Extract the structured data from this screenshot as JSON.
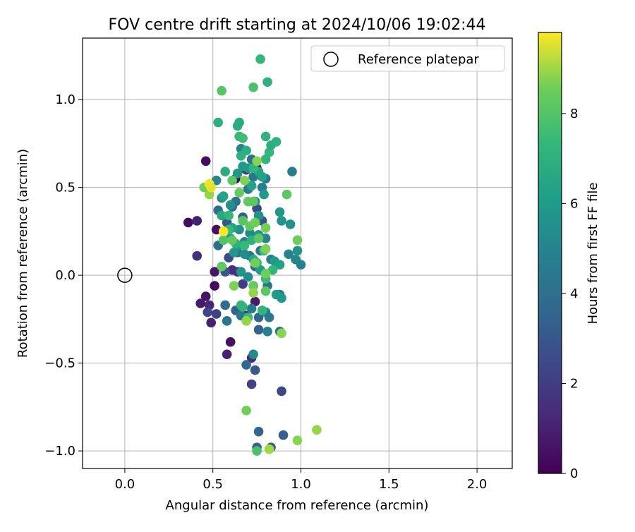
{
  "chart_data": {
    "type": "scatter",
    "title": "FOV centre drift starting at 2024/10/06 19:02:44",
    "xlabel": "Angular distance from reference (arcmin)",
    "ylabel": "Rotation from reference (arcmin)",
    "xlim": [
      -0.24,
      2.2
    ],
    "ylim": [
      -1.1,
      1.35
    ],
    "xticks": [
      0.0,
      0.5,
      1.0,
      1.5,
      2.0
    ],
    "xtick_labels": [
      "0.0",
      "0.5",
      "1.0",
      "1.5",
      "2.0"
    ],
    "yticks": [
      -1.0,
      -0.5,
      0.0,
      0.5,
      1.0
    ],
    "ytick_labels": [
      "−1.0",
      "−0.5",
      "0.0",
      "0.5",
      "1.0"
    ],
    "grid": true,
    "legend": {
      "position": "top-right",
      "entries": [
        "Reference platepar"
      ]
    },
    "reference_point": {
      "name": "Reference platepar",
      "x": 0.0,
      "y": 0.0
    },
    "colorbar": {
      "label": "Hours from first FF file",
      "range": [
        0,
        9.8
      ],
      "ticks": [
        0,
        2,
        4,
        6,
        8
      ],
      "tick_labels": [
        "0",
        "2",
        "4",
        "6",
        "8"
      ],
      "colormap": "viridis"
    },
    "series": [
      {
        "color_by": "hours",
        "points": [
          {
            "x": 0.36,
            "y": 0.3,
            "c": 0.3
          },
          {
            "x": 0.41,
            "y": 0.31,
            "c": 1.0
          },
          {
            "x": 0.46,
            "y": 0.65,
            "c": 0.3
          },
          {
            "x": 0.52,
            "y": 0.26,
            "c": 0.4
          },
          {
            "x": 0.41,
            "y": 0.11,
            "c": 1.5
          },
          {
            "x": 0.51,
            "y": 0.02,
            "c": 0.7
          },
          {
            "x": 0.51,
            "y": -0.06,
            "c": 0.3
          },
          {
            "x": 0.46,
            "y": -0.12,
            "c": 0.6
          },
          {
            "x": 0.43,
            "y": -0.16,
            "c": 0.8
          },
          {
            "x": 0.48,
            "y": -0.17,
            "c": 1.2
          },
          {
            "x": 0.47,
            "y": -0.21,
            "c": 2.4
          },
          {
            "x": 0.49,
            "y": -0.27,
            "c": 1.0
          },
          {
            "x": 0.52,
            "y": -0.22,
            "c": 2.1
          },
          {
            "x": 0.6,
            "y": -0.38,
            "c": 0.5
          },
          {
            "x": 0.58,
            "y": -0.45,
            "c": 1.0
          },
          {
            "x": 0.72,
            "y": -0.47,
            "c": 1.4
          },
          {
            "x": 0.72,
            "y": -0.62,
            "c": 2.2
          },
          {
            "x": 0.89,
            "y": -0.66,
            "c": 2.4
          },
          {
            "x": 0.63,
            "y": 0.55,
            "c": 0.4
          },
          {
            "x": 0.69,
            "y": 0.6,
            "c": 1.7
          },
          {
            "x": 0.75,
            "y": 0.61,
            "c": 0.9
          },
          {
            "x": 0.61,
            "y": 0.03,
            "c": 1.4
          },
          {
            "x": 0.64,
            "y": 0.02,
            "c": 1.6
          },
          {
            "x": 0.67,
            "y": -0.05,
            "c": 2.0
          },
          {
            "x": 0.59,
            "y": 0.1,
            "c": 2.6
          },
          {
            "x": 0.57,
            "y": 0.02,
            "c": 3.0
          },
          {
            "x": 0.74,
            "y": -0.15,
            "c": 0.8
          },
          {
            "x": 0.69,
            "y": -0.23,
            "c": 1.3
          },
          {
            "x": 0.75,
            "y": 0.38,
            "c": 2.3
          },
          {
            "x": 0.78,
            "y": 0.31,
            "c": 2.9
          },
          {
            "x": 0.53,
            "y": 0.17,
            "c": 4.0
          },
          {
            "x": 0.58,
            "y": -0.26,
            "c": 4.3
          },
          {
            "x": 0.57,
            "y": -0.17,
            "c": 3.9
          },
          {
            "x": 0.63,
            "y": -0.2,
            "c": 3.5
          },
          {
            "x": 0.66,
            "y": -0.23,
            "c": 4.4
          },
          {
            "x": 0.72,
            "y": -0.19,
            "c": 4.6
          },
          {
            "x": 0.76,
            "y": -0.24,
            "c": 3.6
          },
          {
            "x": 0.76,
            "y": -0.31,
            "c": 3.4
          },
          {
            "x": 0.8,
            "y": -0.21,
            "c": 5.0
          },
          {
            "x": 0.82,
            "y": -0.24,
            "c": 4.4
          },
          {
            "x": 0.81,
            "y": -0.32,
            "c": 4.8
          },
          {
            "x": 0.88,
            "y": -0.32,
            "c": 4.1
          },
          {
            "x": 0.69,
            "y": -0.51,
            "c": 3.7
          },
          {
            "x": 0.74,
            "y": -0.54,
            "c": 3.1
          },
          {
            "x": 0.73,
            "y": -0.45,
            "c": 5.3
          },
          {
            "x": 0.76,
            "y": -0.89,
            "c": 3.6
          },
          {
            "x": 0.75,
            "y": -0.98,
            "c": 3.3
          },
          {
            "x": 0.83,
            "y": -0.98,
            "c": 3.3
          },
          {
            "x": 0.9,
            "y": -0.91,
            "c": 3.3
          },
          {
            "x": 0.53,
            "y": 0.37,
            "c": 4.0
          },
          {
            "x": 0.58,
            "y": 0.3,
            "c": 2.9
          },
          {
            "x": 0.61,
            "y": 0.39,
            "c": 3.7
          },
          {
            "x": 0.63,
            "y": 0.42,
            "c": 4.2
          },
          {
            "x": 0.67,
            "y": 0.33,
            "c": 3.3
          },
          {
            "x": 0.7,
            "y": 0.49,
            "c": 4.6
          },
          {
            "x": 0.73,
            "y": 0.56,
            "c": 4.3
          },
          {
            "x": 0.78,
            "y": 0.5,
            "c": 4.7
          },
          {
            "x": 0.8,
            "y": 0.55,
            "c": 4.4
          },
          {
            "x": 0.72,
            "y": 0.66,
            "c": 4.1
          },
          {
            "x": 0.66,
            "y": 0.72,
            "c": 4.9
          },
          {
            "x": 0.95,
            "y": 0.59,
            "c": 4.6
          },
          {
            "x": 0.64,
            "y": 0.13,
            "c": 3.8
          },
          {
            "x": 0.68,
            "y": 0.19,
            "c": 4.6
          },
          {
            "x": 0.71,
            "y": 0.11,
            "c": 4.0
          },
          {
            "x": 0.74,
            "y": 0.05,
            "c": 3.8
          },
          {
            "x": 0.77,
            "y": 0.14,
            "c": 4.3
          },
          {
            "x": 0.8,
            "y": 0.21,
            "c": 4.9
          },
          {
            "x": 0.83,
            "y": 0.09,
            "c": 4.7
          },
          {
            "x": 0.81,
            "y": -0.06,
            "c": 4.0
          },
          {
            "x": 0.88,
            "y": -0.11,
            "c": 4.5
          },
          {
            "x": 0.93,
            "y": 0.12,
            "c": 4.9
          },
          {
            "x": 0.97,
            "y": 0.09,
            "c": 5.1
          },
          {
            "x": 1.0,
            "y": 0.06,
            "c": 4.8
          },
          {
            "x": 0.52,
            "y": 0.54,
            "c": 5.1
          },
          {
            "x": 0.55,
            "y": 0.44,
            "c": 5.3
          },
          {
            "x": 0.6,
            "y": 0.4,
            "c": 5.5
          },
          {
            "x": 0.65,
            "y": 0.26,
            "c": 5.6
          },
          {
            "x": 0.71,
            "y": 0.24,
            "c": 5.2
          },
          {
            "x": 0.76,
            "y": 0.23,
            "c": 5.8
          },
          {
            "x": 0.74,
            "y": 0.42,
            "c": 5.3
          },
          {
            "x": 0.76,
            "y": 0.34,
            "c": 5.6
          },
          {
            "x": 0.79,
            "y": 0.46,
            "c": 5.9
          },
          {
            "x": 0.68,
            "y": 0.12,
            "c": 5.4
          },
          {
            "x": 0.65,
            "y": 0.17,
            "c": 6.0
          },
          {
            "x": 0.6,
            "y": 0.21,
            "c": 6.1
          },
          {
            "x": 0.61,
            "y": 0.27,
            "c": 6.3
          },
          {
            "x": 0.62,
            "y": 0.13,
            "c": 5.8
          },
          {
            "x": 0.66,
            "y": 0.02,
            "c": 5.7
          },
          {
            "x": 0.7,
            "y": -0.01,
            "c": 5.4
          },
          {
            "x": 0.73,
            "y": -0.06,
            "c": 5.8
          },
          {
            "x": 0.77,
            "y": 0.03,
            "c": 6.1
          },
          {
            "x": 0.7,
            "y": 0.61,
            "c": 5.9
          },
          {
            "x": 0.67,
            "y": 0.62,
            "c": 6.0
          },
          {
            "x": 0.64,
            "y": 0.58,
            "c": 5.8
          },
          {
            "x": 0.72,
            "y": 0.51,
            "c": 6.3
          },
          {
            "x": 0.76,
            "y": 0.59,
            "c": 6.4
          },
          {
            "x": 0.78,
            "y": 0.56,
            "c": 6.3
          },
          {
            "x": 0.85,
            "y": 0.08,
            "c": 6.0
          },
          {
            "x": 0.88,
            "y": 0.06,
            "c": 6.3
          },
          {
            "x": 0.86,
            "y": -0.11,
            "c": 6.0
          },
          {
            "x": 0.89,
            "y": -0.13,
            "c": 5.9
          },
          {
            "x": 0.73,
            "y": 0.09,
            "c": 6.6
          },
          {
            "x": 0.98,
            "y": 0.14,
            "c": 5.6
          },
          {
            "x": 0.94,
            "y": 0.29,
            "c": 5.5
          },
          {
            "x": 0.88,
            "y": 0.36,
            "c": 5.8
          },
          {
            "x": 0.89,
            "y": 0.31,
            "c": 5.6
          },
          {
            "x": 0.56,
            "y": 0.45,
            "c": 6.4
          },
          {
            "x": 0.55,
            "y": 0.34,
            "c": 6.6
          },
          {
            "x": 0.57,
            "y": 0.59,
            "c": 6.8
          },
          {
            "x": 0.64,
            "y": 0.85,
            "c": 6.8
          },
          {
            "x": 0.65,
            "y": 0.87,
            "c": 6.7
          },
          {
            "x": 0.53,
            "y": 0.87,
            "c": 6.9
          },
          {
            "x": 0.66,
            "y": 0.68,
            "c": 7.0
          },
          {
            "x": 0.69,
            "y": 0.71,
            "c": 6.9
          },
          {
            "x": 0.8,
            "y": 0.66,
            "c": 7.2
          },
          {
            "x": 0.82,
            "y": 0.7,
            "c": 7.3
          },
          {
            "x": 0.8,
            "y": 0.79,
            "c": 7.1
          },
          {
            "x": 0.83,
            "y": 0.74,
            "c": 6.9
          },
          {
            "x": 0.86,
            "y": 0.76,
            "c": 7.0
          },
          {
            "x": 0.65,
            "y": 0.79,
            "c": 7.4
          },
          {
            "x": 0.67,
            "y": 0.78,
            "c": 7.6
          },
          {
            "x": 0.73,
            "y": 0.61,
            "c": 7.2
          },
          {
            "x": 0.63,
            "y": 0.18,
            "c": 7.1
          },
          {
            "x": 0.59,
            "y": 0.26,
            "c": 7.4
          },
          {
            "x": 0.59,
            "y": 0.34,
            "c": 7.3
          },
          {
            "x": 0.68,
            "y": 0.17,
            "c": 7.4
          },
          {
            "x": 0.72,
            "y": 0.2,
            "c": 7.0
          },
          {
            "x": 0.75,
            "y": 0.07,
            "c": 7.2
          },
          {
            "x": 0.79,
            "y": 0.14,
            "c": 7.6
          },
          {
            "x": 0.84,
            "y": 0.03,
            "c": 7.3
          },
          {
            "x": 0.67,
            "y": -0.18,
            "c": 7.1
          },
          {
            "x": 0.66,
            "y": -0.17,
            "c": 7.2
          },
          {
            "x": 0.7,
            "y": -0.24,
            "c": 7.5
          },
          {
            "x": 0.78,
            "y": -0.2,
            "c": 7.2
          },
          {
            "x": 0.8,
            "y": -0.02,
            "c": 7.5
          },
          {
            "x": 0.81,
            "y": 1.1,
            "c": 7.0
          },
          {
            "x": 0.77,
            "y": 1.23,
            "c": 7.2
          },
          {
            "x": 0.73,
            "y": 1.07,
            "c": 7.8
          },
          {
            "x": 0.55,
            "y": 1.05,
            "c": 8.1
          },
          {
            "x": 0.75,
            "y": -1.0,
            "c": 7.8
          },
          {
            "x": 0.61,
            "y": 0.54,
            "c": 8.2
          },
          {
            "x": 0.65,
            "y": 0.47,
            "c": 8.4
          },
          {
            "x": 0.68,
            "y": 0.54,
            "c": 8.7
          },
          {
            "x": 0.7,
            "y": 0.42,
            "c": 8.3
          },
          {
            "x": 0.73,
            "y": 0.42,
            "c": 8.2
          },
          {
            "x": 0.67,
            "y": 0.31,
            "c": 8.1
          },
          {
            "x": 0.71,
            "y": 0.28,
            "c": 8.3
          },
          {
            "x": 0.74,
            "y": 0.3,
            "c": 8.5
          },
          {
            "x": 0.76,
            "y": 0.21,
            "c": 8.2
          },
          {
            "x": 0.8,
            "y": 0.27,
            "c": 8.6
          },
          {
            "x": 0.56,
            "y": 0.2,
            "c": 8.0
          },
          {
            "x": 0.61,
            "y": 0.2,
            "c": 8.3
          },
          {
            "x": 0.74,
            "y": 0.07,
            "c": 8.6
          },
          {
            "x": 0.8,
            "y": 0.01,
            "c": 8.5
          },
          {
            "x": 0.73,
            "y": -0.06,
            "c": 8.4
          },
          {
            "x": 0.73,
            "y": -0.1,
            "c": 8.9
          },
          {
            "x": 0.8,
            "y": -0.09,
            "c": 8.2
          },
          {
            "x": 0.55,
            "y": 0.05,
            "c": 8.3
          },
          {
            "x": 0.62,
            "y": -0.06,
            "c": 8.7
          },
          {
            "x": 0.69,
            "y": -0.26,
            "c": 8.9
          },
          {
            "x": 0.89,
            "y": -0.33,
            "c": 8.8
          },
          {
            "x": 0.98,
            "y": 0.2,
            "c": 8.5
          },
          {
            "x": 0.92,
            "y": 0.46,
            "c": 8.2
          },
          {
            "x": 0.8,
            "y": 0.15,
            "c": 8.7
          },
          {
            "x": 0.75,
            "y": 0.65,
            "c": 8.8
          },
          {
            "x": 0.48,
            "y": 0.46,
            "c": 8.9
          },
          {
            "x": 0.45,
            "y": 0.5,
            "c": 8.6
          },
          {
            "x": 0.69,
            "y": -0.77,
            "c": 8.6
          },
          {
            "x": 0.98,
            "y": -0.94,
            "c": 8.8
          },
          {
            "x": 1.09,
            "y": -0.88,
            "c": 8.9
          },
          {
            "x": 0.82,
            "y": -0.99,
            "c": 9.0
          },
          {
            "x": 0.48,
            "y": 0.52,
            "c": 9.7
          },
          {
            "x": 0.49,
            "y": 0.5,
            "c": 9.6
          },
          {
            "x": 0.56,
            "y": 0.25,
            "c": 9.8
          }
        ]
      }
    ]
  }
}
